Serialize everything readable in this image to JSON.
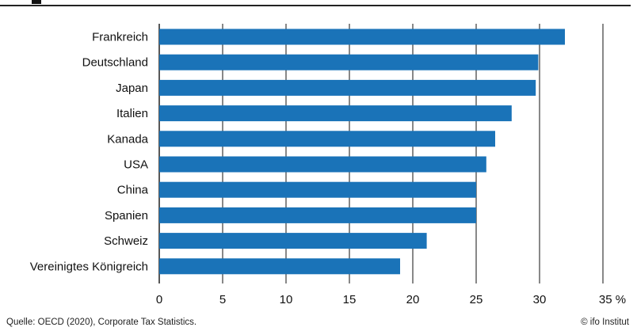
{
  "chart_data": {
    "type": "bar",
    "orientation": "horizontal",
    "categories": [
      "Frankreich",
      "Deutschland",
      "Japan",
      "Italien",
      "Kanada",
      "USA",
      "China",
      "Spanien",
      "Schweiz",
      "Vereinigtes Königreich"
    ],
    "values": [
      32.0,
      29.9,
      29.7,
      27.8,
      26.5,
      25.8,
      25.0,
      25.0,
      21.1,
      19.0
    ],
    "xlim": [
      0,
      35
    ],
    "xticks": [
      0,
      5,
      10,
      15,
      20,
      25,
      30,
      35
    ],
    "x_unit": "%",
    "grid": "vertical",
    "bar_color": "#1a73b8"
  },
  "footer": {
    "source": "Quelle: OECD (2020), Corporate Tax Statistics.",
    "credit": "© ifo Institut"
  }
}
